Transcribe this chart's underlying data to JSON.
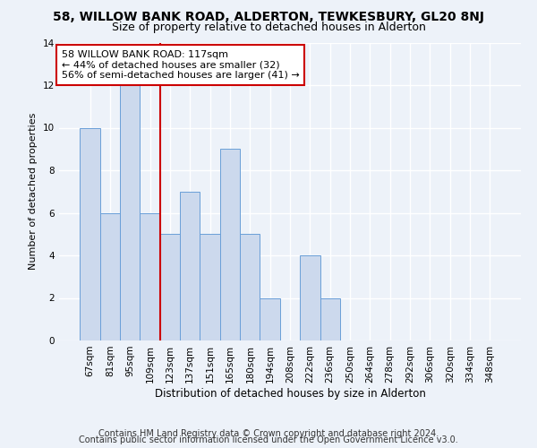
{
  "title1": "58, WILLOW BANK ROAD, ALDERTON, TEWKESBURY, GL20 8NJ",
  "title2": "Size of property relative to detached houses in Alderton",
  "xlabel": "Distribution of detached houses by size in Alderton",
  "ylabel": "Number of detached properties",
  "categories": [
    "67sqm",
    "81sqm",
    "95sqm",
    "109sqm",
    "123sqm",
    "137sqm",
    "151sqm",
    "165sqm",
    "180sqm",
    "194sqm",
    "208sqm",
    "222sqm",
    "236sqm",
    "250sqm",
    "264sqm",
    "278sqm",
    "292sqm",
    "306sqm",
    "320sqm",
    "334sqm",
    "348sqm"
  ],
  "values": [
    10,
    6,
    12,
    6,
    5,
    7,
    5,
    9,
    5,
    2,
    0,
    4,
    2,
    0,
    0,
    0,
    0,
    0,
    0,
    0,
    0
  ],
  "bar_color": "#ccd9ed",
  "bar_edge_color": "#6a9fd8",
  "vline_x": 3.5,
  "vline_color": "#cc0000",
  "annotation_text": "58 WILLOW BANK ROAD: 117sqm\n← 44% of detached houses are smaller (32)\n56% of semi-detached houses are larger (41) →",
  "annotation_box_facecolor": "#ffffff",
  "annotation_box_edgecolor": "#cc0000",
  "ylim": [
    0,
    14
  ],
  "yticks": [
    0,
    2,
    4,
    6,
    8,
    10,
    12,
    14
  ],
  "footer1": "Contains HM Land Registry data © Crown copyright and database right 2024.",
  "footer2": "Contains public sector information licensed under the Open Government Licence v3.0.",
  "bg_color": "#edf2f9",
  "grid_color": "#ffffff",
  "title1_fontsize": 10,
  "title2_fontsize": 9,
  "ylabel_fontsize": 8,
  "xlabel_fontsize": 8.5,
  "tick_fontsize": 7.5,
  "annot_fontsize": 8,
  "footer_fontsize": 7
}
